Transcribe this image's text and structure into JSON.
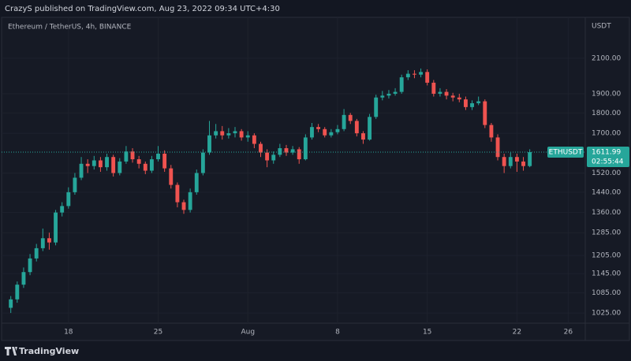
{
  "header": {
    "text": "CrazyS published on TradingView.com, Aug 23, 2022 09:34 UTC+4:30"
  },
  "footer": {
    "brand": "TradingView"
  },
  "chart_data": {
    "type": "candlestick",
    "title": "Ethereum / TetherUS, 4h, BINANCE",
    "y_unit": "USDT",
    "symbol_label": "ETHUSDT",
    "countdown": "02:55:44",
    "log_scale": true,
    "grid": true,
    "up_color": "#26a69a",
    "down_color": "#ef5350",
    "xlim": [
      12.78,
      58.33
    ],
    "ylim": [
      996,
      2356
    ],
    "xticks": [
      18,
      25,
      {
        "value": 32,
        "label": "Aug"
      },
      {
        "value": 39,
        "label": "8"
      },
      {
        "value": 46,
        "label": "15"
      },
      {
        "value": 53,
        "label": "22"
      },
      {
        "value": 57,
        "label": "26"
      }
    ],
    "yticks": [
      {
        "value": 1025,
        "label": "1025.00"
      },
      {
        "value": 1085,
        "label": "1085.00"
      },
      {
        "value": 1145,
        "label": "1145.00"
      },
      {
        "value": 1205,
        "label": "1205.00"
      },
      {
        "value": 1285,
        "label": "1285.00"
      },
      {
        "value": 1360,
        "label": "1360.00"
      },
      {
        "value": 1440,
        "label": "1440.00"
      },
      {
        "value": 1520,
        "label": "1520.00"
      },
      {
        "value": 1700,
        "label": "1700.00"
      },
      {
        "value": 1800,
        "label": "1800.00"
      },
      {
        "value": 1900,
        "label": "1900.00"
      },
      {
        "value": 2100,
        "label": "2100.00"
      }
    ],
    "x": [
      13.5,
      14,
      14.5,
      15,
      15.5,
      16,
      16.5,
      17,
      17.5,
      18,
      18.5,
      19,
      19.5,
      20,
      20.5,
      21,
      21.5,
      22,
      22.5,
      23,
      23.5,
      24,
      24.5,
      25,
      25.5,
      26,
      26.5,
      27,
      27.5,
      28,
      28.5,
      29,
      29.5,
      30,
      30.5,
      31,
      31.5,
      32,
      32.5,
      33,
      33.5,
      34,
      34.5,
      35,
      35.5,
      36,
      36.5,
      37,
      37.5,
      38,
      38.5,
      39,
      39.5,
      40,
      40.5,
      41,
      41.5,
      42,
      42.5,
      43,
      43.5,
      44,
      44.5,
      45,
      45.5,
      46,
      46.5,
      47,
      47.5,
      48,
      48.5,
      49,
      49.5,
      50,
      50.5,
      51,
      51.5,
      52,
      52.5,
      53,
      53.5,
      54
    ],
    "open": [
      1040,
      1065,
      1110,
      1150,
      1195,
      1230,
      1265,
      1250,
      1360,
      1385,
      1440,
      1500,
      1560,
      1550,
      1575,
      1545,
      1590,
      1520,
      1570,
      1615,
      1580,
      1560,
      1530,
      1580,
      1605,
      1540,
      1470,
      1400,
      1370,
      1440,
      1520,
      1610,
      1690,
      1710,
      1690,
      1700,
      1710,
      1680,
      1690,
      1650,
      1610,
      1575,
      1600,
      1630,
      1610,
      1625,
      1580,
      1680,
      1730,
      1720,
      1690,
      1705,
      1720,
      1790,
      1760,
      1700,
      1670,
      1780,
      1880,
      1890,
      1900,
      1910,
      1990,
      2010,
      2005,
      2020,
      1960,
      1900,
      1910,
      1890,
      1880,
      1870,
      1830,
      1850,
      1860,
      1740,
      1680,
      1590,
      1550,
      1590,
      1570,
      1550
    ],
    "high": [
      1075,
      1120,
      1165,
      1210,
      1245,
      1300,
      1285,
      1370,
      1400,
      1460,
      1520,
      1590,
      1580,
      1595,
      1590,
      1605,
      1600,
      1585,
      1640,
      1630,
      1595,
      1570,
      1595,
      1640,
      1620,
      1555,
      1480,
      1410,
      1455,
      1535,
      1625,
      1760,
      1745,
      1735,
      1725,
      1730,
      1720,
      1710,
      1700,
      1660,
      1625,
      1615,
      1650,
      1645,
      1640,
      1635,
      1695,
      1750,
      1745,
      1730,
      1720,
      1740,
      1820,
      1800,
      1770,
      1710,
      1795,
      1895,
      1915,
      1920,
      1930,
      2005,
      2030,
      2030,
      2040,
      2035,
      1975,
      1930,
      1925,
      1905,
      1900,
      1885,
      1865,
      1885,
      1870,
      1750,
      1695,
      1605,
      1610,
      1605,
      1590,
      1625
    ],
    "low": [
      1025,
      1055,
      1100,
      1140,
      1185,
      1220,
      1225,
      1240,
      1345,
      1375,
      1430,
      1490,
      1520,
      1535,
      1525,
      1530,
      1505,
      1510,
      1560,
      1565,
      1540,
      1515,
      1520,
      1570,
      1525,
      1455,
      1380,
      1355,
      1360,
      1430,
      1510,
      1600,
      1675,
      1670,
      1675,
      1680,
      1665,
      1660,
      1630,
      1590,
      1545,
      1560,
      1590,
      1595,
      1600,
      1560,
      1575,
      1670,
      1705,
      1680,
      1680,
      1695,
      1710,
      1745,
      1685,
      1650,
      1665,
      1770,
      1865,
      1875,
      1890,
      1900,
      1975,
      1985,
      1990,
      1945,
      1885,
      1885,
      1870,
      1860,
      1855,
      1815,
      1815,
      1840,
      1725,
      1660,
      1575,
      1520,
      1540,
      1525,
      1530,
      1545
    ],
    "close": [
      1065,
      1110,
      1150,
      1195,
      1230,
      1265,
      1250,
      1360,
      1385,
      1440,
      1500,
      1560,
      1550,
      1575,
      1545,
      1590,
      1520,
      1570,
      1615,
      1580,
      1560,
      1530,
      1580,
      1605,
      1540,
      1470,
      1400,
      1370,
      1440,
      1520,
      1610,
      1690,
      1710,
      1690,
      1700,
      1710,
      1680,
      1690,
      1650,
      1610,
      1575,
      1600,
      1630,
      1610,
      1625,
      1580,
      1680,
      1730,
      1720,
      1690,
      1705,
      1720,
      1790,
      1760,
      1700,
      1670,
      1780,
      1880,
      1890,
      1900,
      1910,
      1990,
      2010,
      2005,
      2020,
      1960,
      1900,
      1910,
      1890,
      1880,
      1870,
      1830,
      1850,
      1860,
      1740,
      1680,
      1590,
      1550,
      1590,
      1570,
      1550,
      1611.99
    ]
  }
}
